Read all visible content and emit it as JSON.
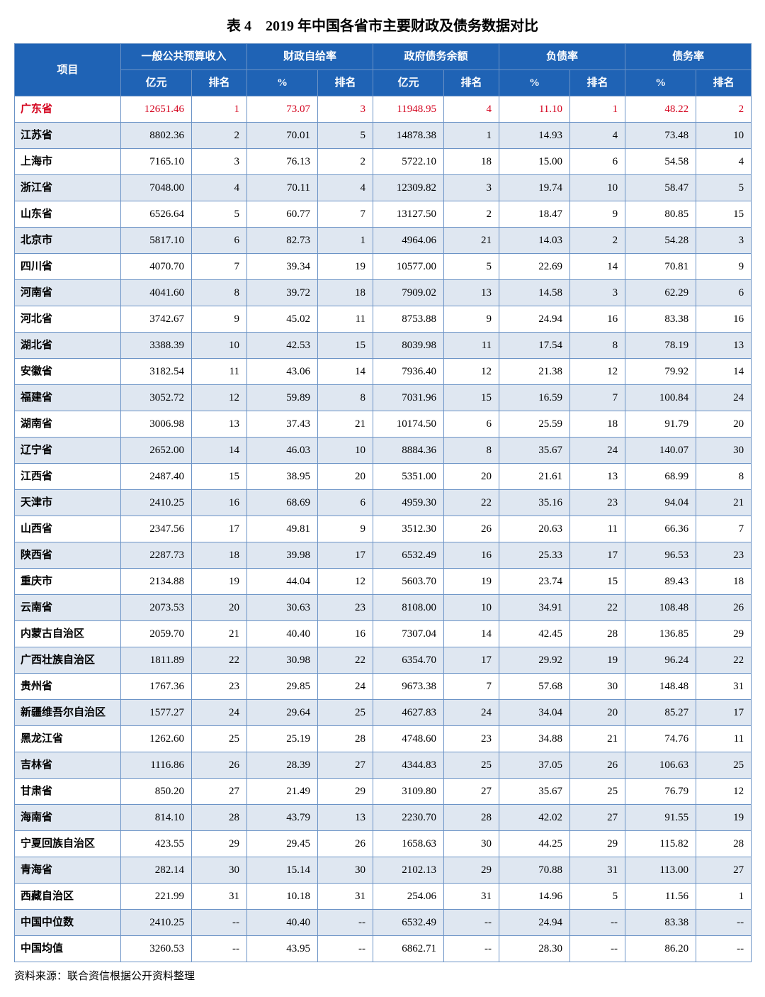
{
  "title": "表 4　2019 年中国各省市主要财政及债务数据对比",
  "source": "资料来源：联合资信根据公开资料整理",
  "colors": {
    "header_bg": "#1f63b5",
    "header_text": "#ffffff",
    "border": "#6b93c6",
    "row_even_bg": "#dfe7f1",
    "row_odd_bg": "#ffffff",
    "highlight_text": "#d4021d"
  },
  "columns": {
    "item": "项目",
    "groups": [
      "一般公共预算收入",
      "财政自给率",
      "政府债务余额",
      "负债率",
      "债务率"
    ],
    "subs": [
      [
        "亿元",
        "排名"
      ],
      [
        "%",
        "排名"
      ],
      [
        "亿元",
        "排名"
      ],
      [
        "%",
        "排名"
      ],
      [
        "%",
        "排名"
      ]
    ]
  },
  "highlight_row_index": 0,
  "rows": [
    {
      "name": "广东省",
      "v": [
        "12651.46",
        "1",
        "73.07",
        "3",
        "11948.95",
        "4",
        "11.10",
        "1",
        "48.22",
        "2"
      ]
    },
    {
      "name": "江苏省",
      "v": [
        "8802.36",
        "2",
        "70.01",
        "5",
        "14878.38",
        "1",
        "14.93",
        "4",
        "73.48",
        "10"
      ]
    },
    {
      "name": "上海市",
      "v": [
        "7165.10",
        "3",
        "76.13",
        "2",
        "5722.10",
        "18",
        "15.00",
        "6",
        "54.58",
        "4"
      ]
    },
    {
      "name": "浙江省",
      "v": [
        "7048.00",
        "4",
        "70.11",
        "4",
        "12309.82",
        "3",
        "19.74",
        "10",
        "58.47",
        "5"
      ]
    },
    {
      "name": "山东省",
      "v": [
        "6526.64",
        "5",
        "60.77",
        "7",
        "13127.50",
        "2",
        "18.47",
        "9",
        "80.85",
        "15"
      ]
    },
    {
      "name": "北京市",
      "v": [
        "5817.10",
        "6",
        "82.73",
        "1",
        "4964.06",
        "21",
        "14.03",
        "2",
        "54.28",
        "3"
      ]
    },
    {
      "name": "四川省",
      "v": [
        "4070.70",
        "7",
        "39.34",
        "19",
        "10577.00",
        "5",
        "22.69",
        "14",
        "70.81",
        "9"
      ]
    },
    {
      "name": "河南省",
      "v": [
        "4041.60",
        "8",
        "39.72",
        "18",
        "7909.02",
        "13",
        "14.58",
        "3",
        "62.29",
        "6"
      ]
    },
    {
      "name": "河北省",
      "v": [
        "3742.67",
        "9",
        "45.02",
        "11",
        "8753.88",
        "9",
        "24.94",
        "16",
        "83.38",
        "16"
      ]
    },
    {
      "name": "湖北省",
      "v": [
        "3388.39",
        "10",
        "42.53",
        "15",
        "8039.98",
        "11",
        "17.54",
        "8",
        "78.19",
        "13"
      ]
    },
    {
      "name": "安徽省",
      "v": [
        "3182.54",
        "11",
        "43.06",
        "14",
        "7936.40",
        "12",
        "21.38",
        "12",
        "79.92",
        "14"
      ]
    },
    {
      "name": "福建省",
      "v": [
        "3052.72",
        "12",
        "59.89",
        "8",
        "7031.96",
        "15",
        "16.59",
        "7",
        "100.84",
        "24"
      ]
    },
    {
      "name": "湖南省",
      "v": [
        "3006.98",
        "13",
        "37.43",
        "21",
        "10174.50",
        "6",
        "25.59",
        "18",
        "91.79",
        "20"
      ]
    },
    {
      "name": "辽宁省",
      "v": [
        "2652.00",
        "14",
        "46.03",
        "10",
        "8884.36",
        "8",
        "35.67",
        "24",
        "140.07",
        "30"
      ]
    },
    {
      "name": "江西省",
      "v": [
        "2487.40",
        "15",
        "38.95",
        "20",
        "5351.00",
        "20",
        "21.61",
        "13",
        "68.99",
        "8"
      ]
    },
    {
      "name": "天津市",
      "v": [
        "2410.25",
        "16",
        "68.69",
        "6",
        "4959.30",
        "22",
        "35.16",
        "23",
        "94.04",
        "21"
      ]
    },
    {
      "name": "山西省",
      "v": [
        "2347.56",
        "17",
        "49.81",
        "9",
        "3512.30",
        "26",
        "20.63",
        "11",
        "66.36",
        "7"
      ]
    },
    {
      "name": "陕西省",
      "v": [
        "2287.73",
        "18",
        "39.98",
        "17",
        "6532.49",
        "16",
        "25.33",
        "17",
        "96.53",
        "23"
      ]
    },
    {
      "name": "重庆市",
      "v": [
        "2134.88",
        "19",
        "44.04",
        "12",
        "5603.70",
        "19",
        "23.74",
        "15",
        "89.43",
        "18"
      ]
    },
    {
      "name": "云南省",
      "v": [
        "2073.53",
        "20",
        "30.63",
        "23",
        "8108.00",
        "10",
        "34.91",
        "22",
        "108.48",
        "26"
      ]
    },
    {
      "name": "内蒙古自治区",
      "v": [
        "2059.70",
        "21",
        "40.40",
        "16",
        "7307.04",
        "14",
        "42.45",
        "28",
        "136.85",
        "29"
      ]
    },
    {
      "name": "广西壮族自治区",
      "v": [
        "1811.89",
        "22",
        "30.98",
        "22",
        "6354.70",
        "17",
        "29.92",
        "19",
        "96.24",
        "22"
      ]
    },
    {
      "name": "贵州省",
      "v": [
        "1767.36",
        "23",
        "29.85",
        "24",
        "9673.38",
        "7",
        "57.68",
        "30",
        "148.48",
        "31"
      ]
    },
    {
      "name": "新疆维吾尔自治区",
      "v": [
        "1577.27",
        "24",
        "29.64",
        "25",
        "4627.83",
        "24",
        "34.04",
        "20",
        "85.27",
        "17"
      ]
    },
    {
      "name": "黑龙江省",
      "v": [
        "1262.60",
        "25",
        "25.19",
        "28",
        "4748.60",
        "23",
        "34.88",
        "21",
        "74.76",
        "11"
      ]
    },
    {
      "name": "吉林省",
      "v": [
        "1116.86",
        "26",
        "28.39",
        "27",
        "4344.83",
        "25",
        "37.05",
        "26",
        "106.63",
        "25"
      ]
    },
    {
      "name": "甘肃省",
      "v": [
        "850.20",
        "27",
        "21.49",
        "29",
        "3109.80",
        "27",
        "35.67",
        "25",
        "76.79",
        "12"
      ]
    },
    {
      "name": "海南省",
      "v": [
        "814.10",
        "28",
        "43.79",
        "13",
        "2230.70",
        "28",
        "42.02",
        "27",
        "91.55",
        "19"
      ]
    },
    {
      "name": "宁夏回族自治区",
      "v": [
        "423.55",
        "29",
        "29.45",
        "26",
        "1658.63",
        "30",
        "44.25",
        "29",
        "115.82",
        "28"
      ]
    },
    {
      "name": "青海省",
      "v": [
        "282.14",
        "30",
        "15.14",
        "30",
        "2102.13",
        "29",
        "70.88",
        "31",
        "113.00",
        "27"
      ]
    },
    {
      "name": "西藏自治区",
      "v": [
        "221.99",
        "31",
        "10.18",
        "31",
        "254.06",
        "31",
        "14.96",
        "5",
        "11.56",
        "1"
      ]
    },
    {
      "name": "中国中位数",
      "v": [
        "2410.25",
        "--",
        "40.40",
        "--",
        "6532.49",
        "--",
        "24.94",
        "--",
        "83.38",
        "--"
      ]
    },
    {
      "name": "中国均值",
      "v": [
        "3260.53",
        "--",
        "43.95",
        "--",
        "6862.71",
        "--",
        "28.30",
        "--",
        "86.20",
        "--"
      ]
    }
  ]
}
